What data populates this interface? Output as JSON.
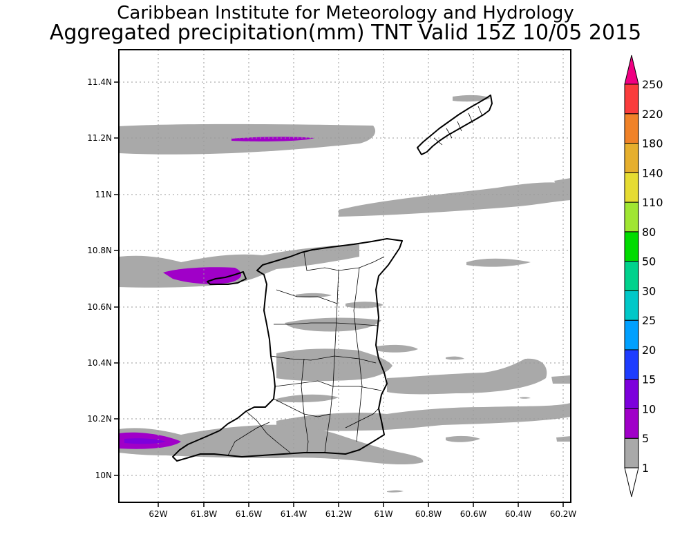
{
  "title": {
    "line1": "Caribbean Institute for Meteorology and Hydrology",
    "line2": "Aggregated precipitation(mm) TNT Valid 15Z 10/05 2015"
  },
  "map": {
    "lon_range": [
      -62.35,
      -60.17
    ],
    "lat_range": [
      9.9,
      11.5
    ],
    "x_ticks": [
      "62W",
      "61.8W",
      "61.6W",
      "61.4W",
      "61.2W",
      "61W",
      "60.8W",
      "60.6W",
      "60.4W",
      "60.2W"
    ],
    "y_ticks": [
      "11.4N",
      "11.2N",
      "11N",
      "10.8N",
      "10.6N",
      "10.4N",
      "10.2N",
      "10N"
    ],
    "grid": true
  },
  "colorbar": {
    "labels": [
      "1",
      "5",
      "10",
      "15",
      "20",
      "25",
      "30",
      "50",
      "80",
      "110",
      "140",
      "180",
      "220",
      "250"
    ],
    "colors": [
      "#ffffff",
      "#a9a9a9",
      "#a000c8",
      "#7d00dc",
      "#1e3cff",
      "#00a0ff",
      "#00c8c8",
      "#00d28c",
      "#00dc00",
      "#a0e632",
      "#e6dc32",
      "#e6af2d",
      "#f08228",
      "#fa3c3c",
      "#f00082"
    ]
  }
}
